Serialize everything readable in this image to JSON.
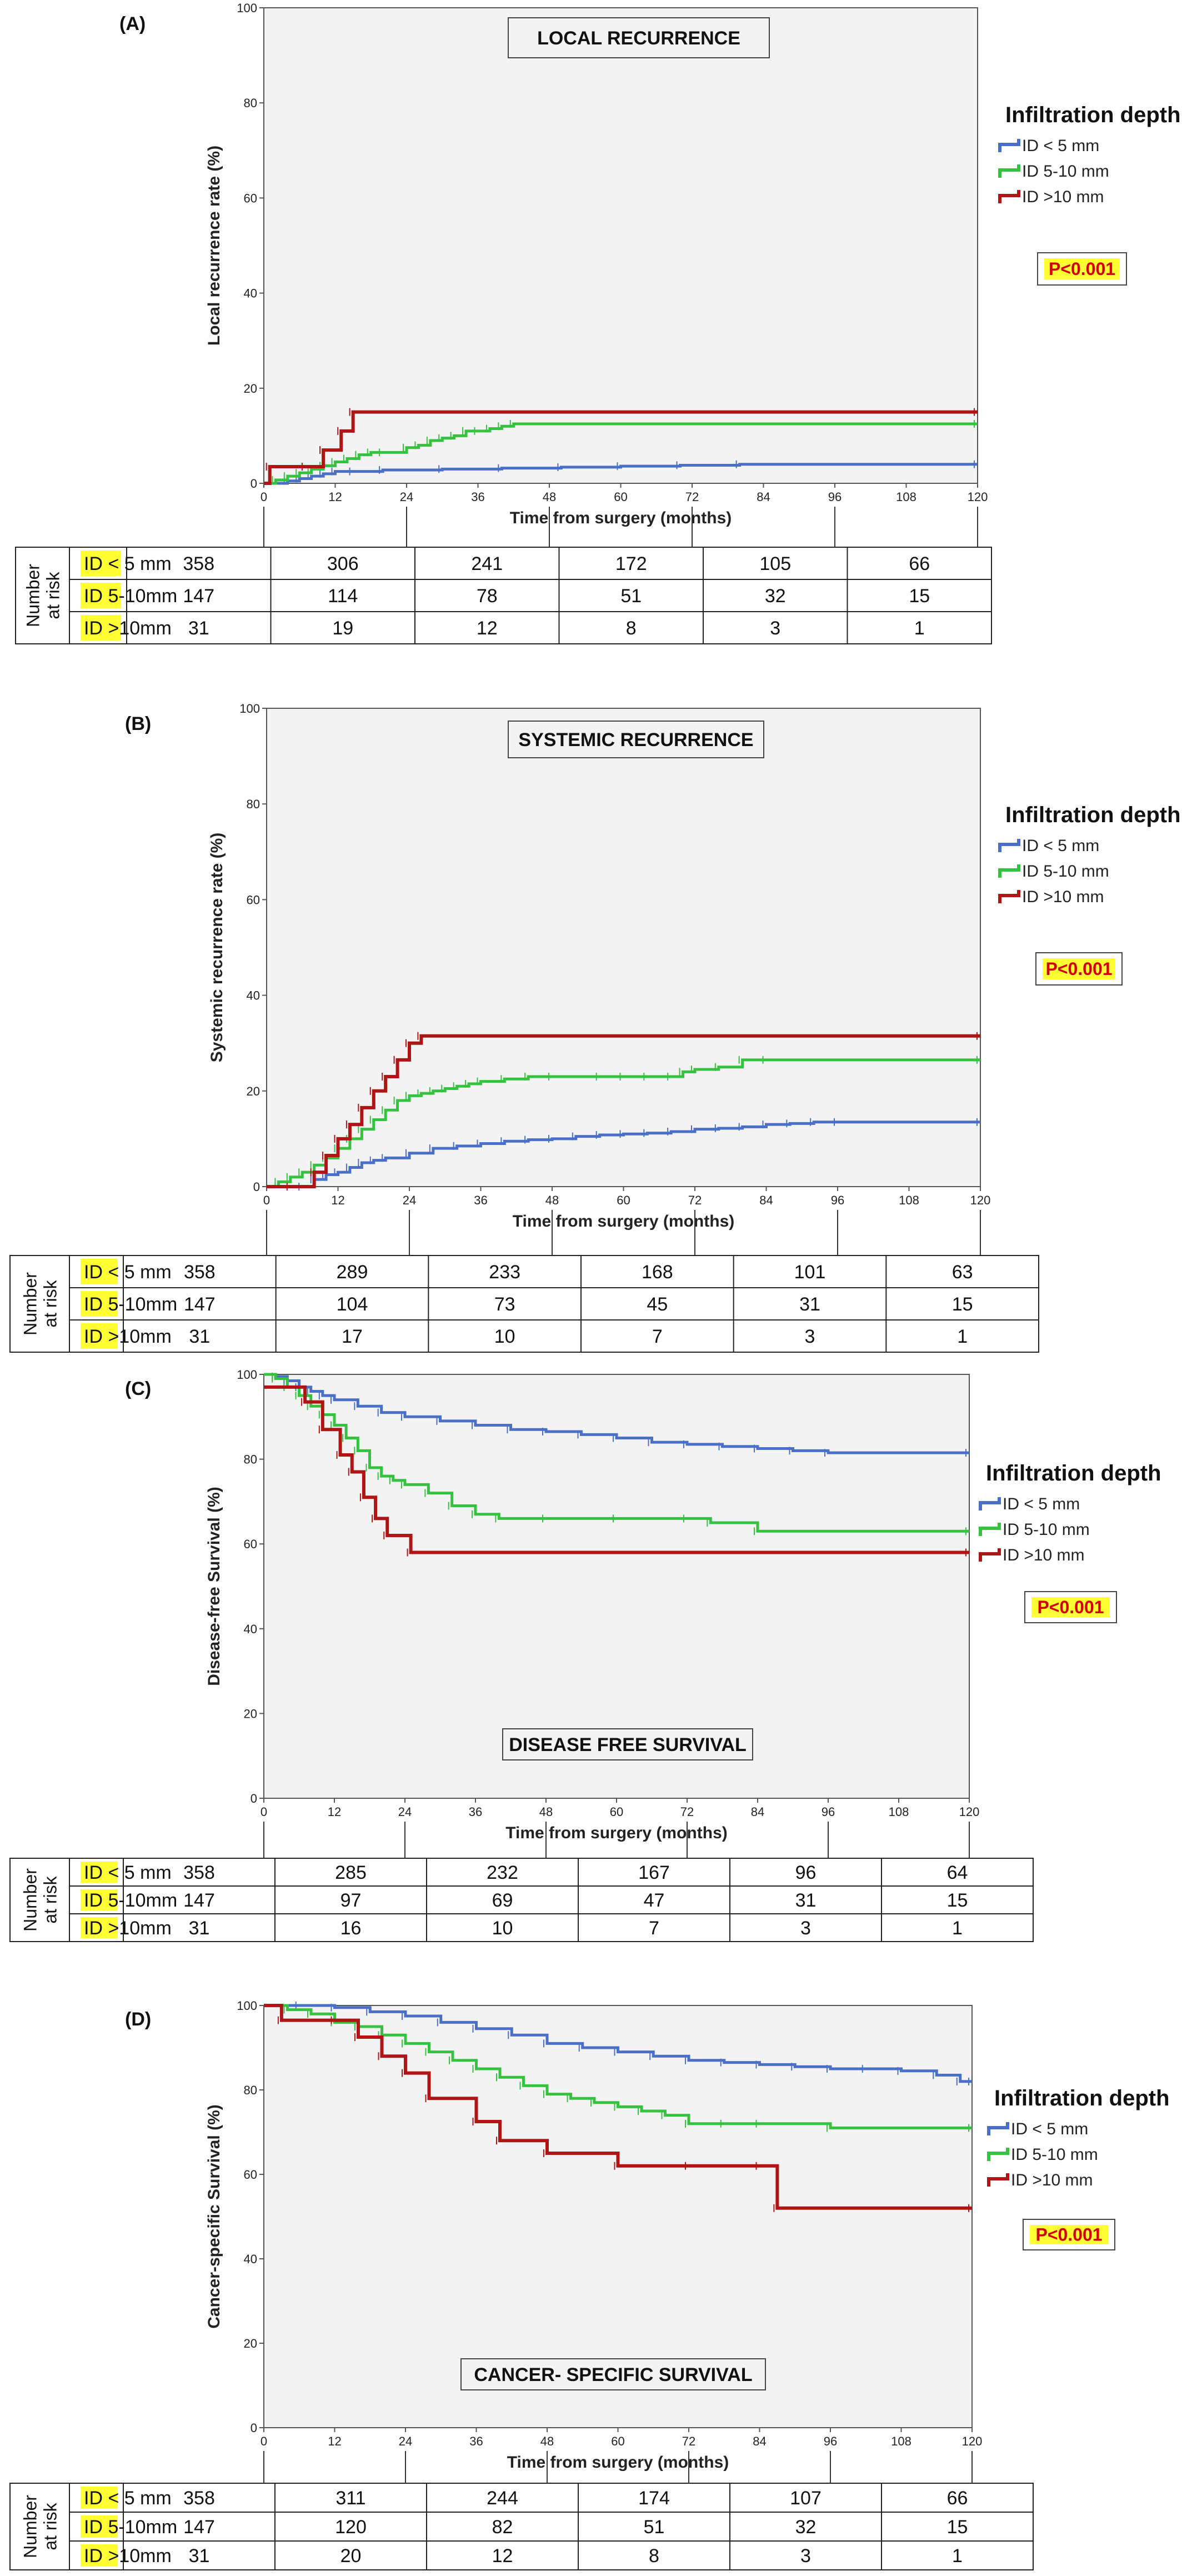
{
  "colors": {
    "blue": "#4a6fc8",
    "green": "#34c23f",
    "red": "#b01515",
    "highlight": "#ffff33",
    "pval": "#d40000",
    "plot_bg": "#f3f3f3"
  },
  "risk_row_labels": [
    "ID < 5 mm",
    "ID 5-10mm",
    "ID >10mm"
  ],
  "number_at_risk_label": [
    "Number",
    "at risk"
  ],
  "chart_data": [
    {
      "type": "line",
      "panel_label": "(A)",
      "title": "LOCAL RECURRENCE",
      "xlabel": "Time from surgery (months)",
      "ylabel": "Local recurrence rate (%)",
      "xlim": [
        0,
        120
      ],
      "ylim": [
        0,
        100
      ],
      "x_ticks": [
        0,
        12,
        24,
        36,
        48,
        60,
        72,
        84,
        96,
        108,
        120
      ],
      "y_ticks": [
        0,
        20,
        40,
        60,
        80,
        100
      ],
      "grid": false,
      "legend_title": "Infiltration depth",
      "legend_position": "right",
      "p_value": "P<0.001",
      "series": [
        {
          "name": "ID < 5 mm",
          "color": "blue",
          "x": [
            0,
            4,
            6,
            8,
            10,
            12,
            15,
            20,
            30,
            40,
            50,
            60,
            70,
            80,
            120
          ],
          "y": [
            0,
            0.5,
            1,
            1.5,
            2,
            2.5,
            2.5,
            2.8,
            3,
            3.2,
            3.4,
            3.6,
            3.8,
            4,
            4
          ]
        },
        {
          "name": "ID 5-10 mm",
          "color": "green",
          "x": [
            0,
            2,
            4,
            6,
            8,
            10,
            12,
            14,
            16,
            18,
            20,
            24,
            26,
            28,
            30,
            32,
            34,
            36,
            38,
            40,
            42,
            120
          ],
          "y": [
            0,
            0.7,
            1.5,
            2.2,
            3,
            3.7,
            4.5,
            5.2,
            6,
            6.5,
            6.5,
            7.5,
            8,
            9,
            9.5,
            10,
            11,
            11,
            11.5,
            12,
            12.5,
            12.5
          ]
        },
        {
          "name": "ID >10 mm",
          "color": "red",
          "x": [
            0,
            1,
            7,
            10,
            13,
            15,
            120
          ],
          "y": [
            0,
            3.5,
            3.5,
            7,
            11,
            15,
            15
          ]
        }
      ],
      "risk_table": {
        "times": [
          0,
          24,
          48,
          72,
          96,
          120
        ],
        "rows": [
          [
            358,
            306,
            241,
            172,
            105,
            66
          ],
          [
            147,
            114,
            78,
            51,
            32,
            15
          ],
          [
            31,
            19,
            12,
            8,
            3,
            1
          ]
        ]
      }
    },
    {
      "type": "line",
      "panel_label": "(B)",
      "title": "SYSTEMIC RECURRENCE",
      "xlabel": "Time from surgery (months)",
      "ylabel": "Systemic recurrence rate (%)",
      "xlim": [
        0,
        120
      ],
      "ylim": [
        0,
        100
      ],
      "x_ticks": [
        0,
        12,
        24,
        36,
        48,
        60,
        72,
        84,
        96,
        108,
        120
      ],
      "y_ticks": [
        0,
        20,
        40,
        60,
        80,
        100
      ],
      "grid": false,
      "legend_title": "Infiltration depth",
      "legend_position": "right",
      "p_value": "P<0.001",
      "series": [
        {
          "name": "ID < 5 mm",
          "color": "blue",
          "x": [
            0,
            6,
            8,
            10,
            12,
            14,
            16,
            18,
            20,
            24,
            28,
            32,
            36,
            40,
            44,
            48,
            52,
            56,
            60,
            64,
            68,
            72,
            76,
            80,
            84,
            88,
            92,
            96,
            120
          ],
          "y": [
            0,
            0,
            1.5,
            2.5,
            3,
            4,
            5,
            5.5,
            6,
            7,
            8,
            8.5,
            9,
            9.5,
            9.8,
            10,
            10.5,
            10.8,
            11,
            11.2,
            11.5,
            12,
            12.2,
            12.5,
            13,
            13.2,
            13.5,
            13.5,
            13.5
          ]
        },
        {
          "name": "ID 5-10 mm",
          "color": "green",
          "x": [
            0,
            2,
            4,
            6,
            8,
            10,
            12,
            14,
            16,
            18,
            20,
            22,
            24,
            26,
            28,
            30,
            32,
            34,
            36,
            40,
            44,
            48,
            56,
            60,
            64,
            68,
            70,
            72,
            76,
            80,
            84,
            120
          ],
          "y": [
            0,
            1,
            2,
            3,
            4.5,
            6,
            8,
            10,
            12,
            14,
            16,
            18,
            19,
            19.5,
            20,
            20.5,
            21,
            21.5,
            22,
            22.5,
            23,
            23,
            23,
            23,
            23,
            23,
            24,
            24.5,
            25,
            26.5,
            26.5,
            26.5
          ]
        },
        {
          "name": "ID >10 mm",
          "color": "red",
          "x": [
            0,
            4,
            8,
            10,
            12,
            14,
            16,
            18,
            20,
            22,
            24,
            26,
            120
          ],
          "y": [
            0,
            0,
            3,
            6.5,
            10,
            13,
            16.5,
            20,
            23,
            26.5,
            30,
            31.5,
            31.5
          ]
        }
      ],
      "risk_table": {
        "times": [
          0,
          24,
          48,
          72,
          96,
          120
        ],
        "rows": [
          [
            358,
            289,
            233,
            168,
            101,
            63
          ],
          [
            147,
            104,
            73,
            45,
            31,
            15
          ],
          [
            31,
            17,
            10,
            7,
            3,
            1
          ]
        ]
      }
    },
    {
      "type": "line",
      "panel_label": "(C)",
      "title": "DISEASE FREE SURVIVAL",
      "xlabel": "Time from surgery (months)",
      "ylabel": "Disease-free Survival (%)",
      "xlim": [
        0,
        120
      ],
      "ylim": [
        0,
        100
      ],
      "x_ticks": [
        0,
        12,
        24,
        36,
        48,
        60,
        72,
        84,
        96,
        108,
        120
      ],
      "y_ticks": [
        0,
        20,
        40,
        60,
        80,
        100
      ],
      "grid": false,
      "legend_title": "Infiltration depth",
      "legend_position": "right",
      "p_value": "P<0.001",
      "series": [
        {
          "name": "ID < 5 mm",
          "color": "blue",
          "x": [
            0,
            2,
            4,
            6,
            8,
            10,
            12,
            16,
            20,
            24,
            30,
            36,
            42,
            48,
            54,
            60,
            66,
            72,
            78,
            84,
            90,
            96,
            120
          ],
          "y": [
            100,
            99.5,
            98.5,
            97,
            96,
            95,
            94,
            92.5,
            91,
            90,
            89,
            88,
            87,
            86.5,
            85.8,
            85,
            84,
            83.5,
            83,
            82.5,
            82,
            81.5,
            81.5
          ]
        },
        {
          "name": "ID 5-10 mm",
          "color": "green",
          "x": [
            0,
            2,
            4,
            6,
            8,
            10,
            12,
            14,
            16,
            18,
            20,
            22,
            24,
            28,
            32,
            36,
            40,
            48,
            60,
            72,
            76,
            84,
            120
          ],
          "y": [
            100,
            99,
            97,
            95,
            92.5,
            90.5,
            88,
            85,
            82,
            78,
            76,
            75,
            74,
            72,
            69,
            67,
            66,
            66,
            66,
            66,
            65,
            63,
            63
          ]
        },
        {
          "name": "ID >10 mm",
          "color": "red",
          "x": [
            0,
            7,
            10,
            13,
            15,
            17,
            19,
            21,
            25,
            120
          ],
          "y": [
            97,
            93.5,
            87,
            81,
            77,
            71,
            66,
            62,
            58,
            58
          ]
        }
      ],
      "risk_table": {
        "times": [
          0,
          24,
          48,
          72,
          96,
          120
        ],
        "rows": [
          [
            358,
            285,
            232,
            167,
            96,
            64
          ],
          [
            147,
            97,
            69,
            47,
            31,
            15
          ],
          [
            31,
            16,
            10,
            7,
            3,
            1
          ]
        ]
      }
    },
    {
      "type": "line",
      "panel_label": "(D)",
      "title": "CANCER- SPECIFIC SURVIVAL",
      "xlabel": "Time from surgery (months)",
      "ylabel": "Cancer-specific Survival (%)",
      "xlim": [
        0,
        120
      ],
      "ylim": [
        0,
        100
      ],
      "x_ticks": [
        0,
        12,
        24,
        36,
        48,
        60,
        72,
        84,
        96,
        108,
        120
      ],
      "y_ticks": [
        0,
        20,
        40,
        60,
        80,
        100
      ],
      "grid": false,
      "legend_title": "Infiltration depth",
      "legend_position": "right",
      "p_value": "P<0.001",
      "series": [
        {
          "name": "ID < 5 mm",
          "color": "blue",
          "x": [
            0,
            6,
            12,
            18,
            24,
            30,
            36,
            42,
            48,
            54,
            60,
            66,
            72,
            78,
            84,
            90,
            96,
            102,
            108,
            114,
            118,
            120
          ],
          "y": [
            100,
            100,
            99.5,
            98.5,
            97.5,
            96,
            94.5,
            93,
            91,
            90,
            89,
            88,
            87,
            86.5,
            86,
            85.5,
            85,
            85,
            84.5,
            83.5,
            82,
            82
          ]
        },
        {
          "name": "ID 5-10 mm",
          "color": "green",
          "x": [
            0,
            4,
            8,
            12,
            16,
            20,
            24,
            28,
            32,
            36,
            40,
            44,
            48,
            52,
            56,
            60,
            64,
            68,
            72,
            78,
            84,
            96,
            120
          ],
          "y": [
            100,
            99,
            98,
            96,
            95,
            93,
            91,
            89,
            87,
            85,
            83,
            81,
            79,
            78,
            77,
            76,
            75,
            74,
            72,
            72,
            72,
            71,
            71
          ]
        },
        {
          "name": "ID >10 mm",
          "color": "red",
          "x": [
            0,
            3,
            12,
            16,
            20,
            24,
            28,
            36,
            40,
            48,
            60,
            72,
            84,
            87,
            120
          ],
          "y": [
            100,
            96.5,
            96.5,
            92.5,
            88,
            84,
            78,
            72.5,
            68,
            65,
            62,
            62,
            62,
            52,
            52
          ]
        }
      ],
      "risk_table": {
        "times": [
          0,
          24,
          48,
          72,
          96,
          120
        ],
        "rows": [
          [
            358,
            311,
            244,
            174,
            107,
            66
          ],
          [
            147,
            120,
            82,
            51,
            32,
            15
          ],
          [
            31,
            20,
            12,
            8,
            3,
            1
          ]
        ]
      }
    }
  ]
}
